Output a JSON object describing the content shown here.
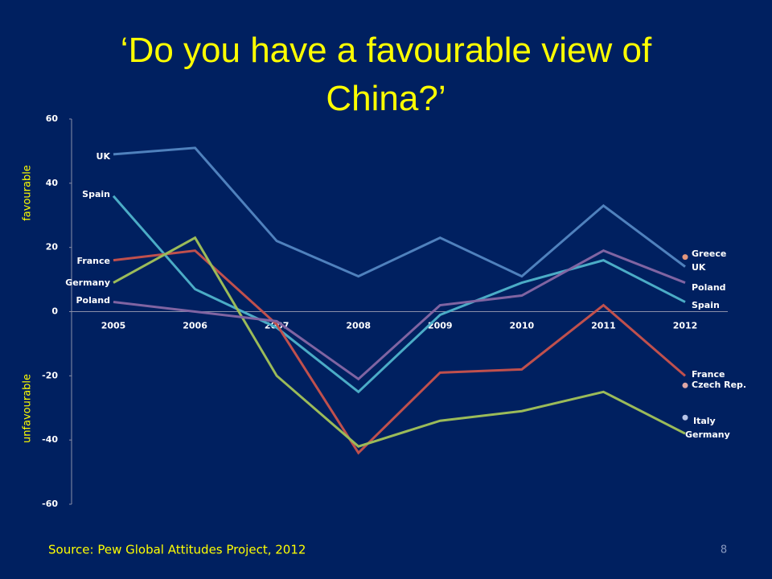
{
  "chart_data": {
    "type": "line",
    "title": "‘Do you have a favourable view of China?’",
    "ylabel_top": "favourable",
    "ylabel_bottom": "unfavourable",
    "categories": [
      "2005",
      "2006",
      "2007",
      "2008",
      "2009",
      "2010",
      "2011",
      "2012"
    ],
    "ylim": [
      -60,
      60
    ],
    "yticks": [
      60,
      40,
      20,
      0,
      -20,
      -40,
      -60
    ],
    "grid": false,
    "series": [
      {
        "name": "UK",
        "color": "#4f81bd",
        "mode": "line",
        "values": [
          49,
          51,
          22,
          11,
          23,
          11,
          33,
          14
        ]
      },
      {
        "name": "Spain",
        "color": "#4bacc6",
        "mode": "line",
        "values": [
          36,
          7,
          -5,
          -25,
          -1,
          9,
          16,
          3
        ]
      },
      {
        "name": "France",
        "color": "#c0504d",
        "mode": "line",
        "values": [
          16,
          19,
          -4,
          -44,
          -19,
          -18,
          2,
          -20
        ]
      },
      {
        "name": "Germany",
        "color": "#9bbb59",
        "mode": "line",
        "values": [
          9,
          23,
          -20,
          -42,
          -34,
          -31,
          -25,
          -38
        ]
      },
      {
        "name": "Poland",
        "color": "#8064a2",
        "mode": "line",
        "values": [
          3,
          0,
          -3,
          -21,
          2,
          5,
          19,
          9
        ]
      },
      {
        "name": "Greece",
        "color": "#e3967d",
        "mode": "marker",
        "values": [
          null,
          null,
          null,
          null,
          null,
          null,
          null,
          17
        ]
      },
      {
        "name": "Czech Rep.",
        "color": "#e0a7a6",
        "mode": "marker",
        "values": [
          null,
          null,
          null,
          null,
          null,
          null,
          null,
          -23
        ]
      },
      {
        "name": "Italy",
        "color": "#b7c4e8",
        "mode": "marker",
        "values": [
          null,
          null,
          null,
          null,
          null,
          null,
          null,
          -33
        ]
      }
    ]
  },
  "source": "Source: Pew Global Attitudes Project, 2012",
  "page_number": "8"
}
